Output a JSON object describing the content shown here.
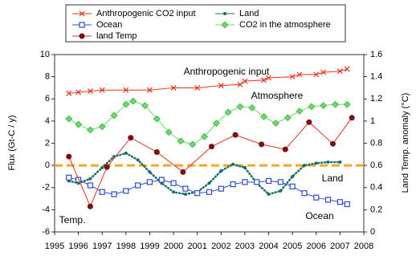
{
  "chart_data": {
    "type": "line",
    "y_label": "Flux (Gt-C / y)",
    "y2_label": "Land Temp. anomaly (°C)",
    "xlim": [
      1995,
      2008
    ],
    "xticks": [
      1995,
      1996,
      1997,
      1998,
      1999,
      2000,
      2001,
      2002,
      2003,
      2004,
      2005,
      2006,
      2007,
      2008
    ],
    "ylim": [
      -6,
      10
    ],
    "yticks": [
      -6,
      -4,
      -2,
      0,
      2,
      4,
      6,
      8,
      10
    ],
    "y2lim": [
      0,
      1.6
    ],
    "y2ticks": [
      0,
      0.2,
      0.4,
      0.6,
      0.8,
      1,
      1.2,
      1.4,
      1.6
    ],
    "zero_line_color": "#f5a623",
    "annotations": [
      "Anthropogenic input",
      "Atmosphere",
      "Land",
      "Ocean",
      "Temp."
    ],
    "series": [
      {
        "name": "Anthropogenic CO2 input",
        "color": "#e8321e",
        "marker": "x",
        "x": [
          1995.6,
          1996,
          1996.5,
          1997,
          1998,
          1999,
          2000,
          2001,
          2002,
          2002.8,
          2003,
          2003.8,
          2004,
          2005,
          2005.3,
          2006,
          2006.3,
          2007,
          2007.3
        ],
        "values": [
          6.5,
          6.6,
          6.7,
          6.8,
          6.8,
          6.8,
          7.0,
          7.0,
          7.2,
          7.3,
          7.6,
          7.7,
          7.9,
          8.0,
          8.2,
          8.2,
          8.4,
          8.5,
          8.7
        ]
      },
      {
        "name": "Land",
        "color": "#1a6e6a",
        "marker": "dot",
        "x": [
          1995.6,
          1996,
          1996.5,
          1997,
          1997.5,
          1998,
          1998.5,
          1999,
          1999.5,
          2000,
          2000.5,
          2001,
          2001.5,
          2002,
          2002.5,
          2003,
          2003.5,
          2004,
          2004.5,
          2005,
          2005.5,
          2006,
          2006.5,
          2007
        ],
        "values": [
          -1.4,
          -1.6,
          -1.2,
          -0.2,
          0.8,
          1.1,
          0.5,
          -0.6,
          -1.6,
          -2.4,
          -2.6,
          -2.4,
          -1.6,
          -0.5,
          0.1,
          -0.2,
          -1.6,
          -2.6,
          -2.3,
          -1.0,
          0.0,
          0.2,
          0.3,
          0.3
        ]
      },
      {
        "name": "Ocean",
        "color": "#2b4fc8",
        "marker": "square",
        "x": [
          1995.6,
          1996,
          1996.5,
          1997,
          1997.5,
          1998,
          1998.5,
          1999,
          1999.5,
          2000,
          2000.5,
          2001,
          2001.5,
          2002,
          2002.5,
          2003,
          2003.5,
          2004,
          2004.5,
          2005,
          2005.5,
          2006,
          2006.5,
          2007,
          2007.3
        ],
        "values": [
          -1.1,
          -1.3,
          -1.8,
          -2.4,
          -2.6,
          -2.3,
          -1.8,
          -1.5,
          -1.3,
          -1.6,
          -2.1,
          -2.5,
          -2.4,
          -2.1,
          -1.7,
          -1.5,
          -1.5,
          -1.4,
          -1.5,
          -1.9,
          -2.5,
          -2.9,
          -3.1,
          -3.3,
          -3.5
        ]
      },
      {
        "name": "CO2  in the atmosphere",
        "color": "#66dd66",
        "marker": "diamond",
        "x": [
          1995.6,
          1996,
          1996.5,
          1997,
          1997.5,
          1998,
          1998.3,
          1998.8,
          1999.3,
          1999.8,
          2000.3,
          2000.8,
          2001.3,
          2001.8,
          2002.3,
          2002.8,
          2003.3,
          2003.8,
          2004.3,
          2004.8,
          2005.3,
          2005.8,
          2006.3,
          2006.8,
          2007.3
        ],
        "values": [
          4.2,
          3.7,
          3.2,
          3.5,
          4.5,
          5.5,
          5.8,
          5.4,
          4.2,
          3.0,
          2.2,
          1.9,
          2.6,
          3.8,
          4.8,
          5.3,
          5.2,
          4.4,
          3.8,
          4.3,
          4.9,
          5.3,
          5.4,
          5.5,
          5.5
        ]
      },
      {
        "name": "land Temp",
        "color": "#e03020",
        "marker": "circle",
        "axis": "y2",
        "x": [
          1995.6,
          1996.5,
          1997.2,
          1998.2,
          1999.3,
          2000.4,
          2001.6,
          2002.6,
          2003.7,
          2004.7,
          2005.7,
          2006.7,
          2007.5
        ],
        "values": [
          0.68,
          0.23,
          0.585,
          0.85,
          0.72,
          0.54,
          0.77,
          0.875,
          0.79,
          0.745,
          0.99,
          0.795,
          1.03
        ]
      }
    ]
  }
}
